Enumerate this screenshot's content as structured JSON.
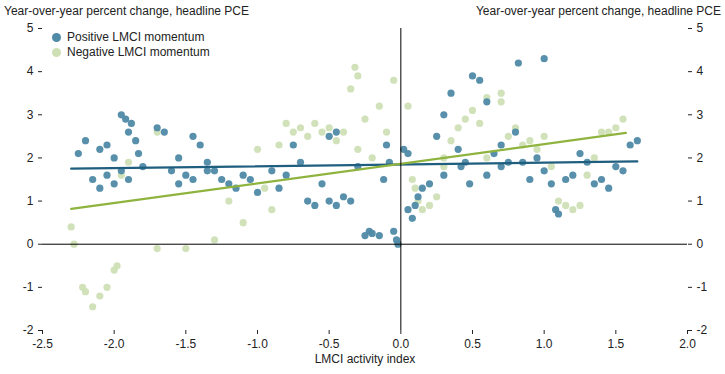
{
  "chart_data": {
    "type": "scatter",
    "title_left": "Year-over-year percent change, headline PCE",
    "title_right": "Year-over-year percent change, headline PCE",
    "x_label": "LMCI activity index",
    "xlim": [
      -2.5,
      2.0
    ],
    "xticks": [
      -2.5,
      {
        "value": -2,
        "label": "-2.0"
      },
      -1.5,
      {
        "value": -1,
        "label": "-1.0"
      },
      -0.5,
      {
        "value": 0,
        "label": "0.0"
      },
      0.5,
      {
        "value": 1,
        "label": "1.0"
      },
      1.5,
      {
        "value": 2,
        "label": "2.0"
      }
    ],
    "ylim": [
      -2,
      5
    ],
    "yticks": [
      -2,
      -1,
      0,
      1,
      2,
      3,
      4,
      5
    ],
    "grid": false,
    "legend": "top-left",
    "marker": "circle",
    "rules": {
      "x": [
        0
      ],
      "y": [
        0
      ]
    },
    "series": [
      {
        "name": "Positive LMCI momentum",
        "color": "#4f8aa6",
        "type": "scatter",
        "x": [
          -2.25,
          -2.2,
          -2.15,
          -2.1,
          -2.05,
          -2.0,
          -1.95,
          -1.92,
          -1.9,
          -1.88,
          -1.85,
          -1.83,
          -1.8,
          -1.95,
          -2.0,
          -2.05,
          -2.1,
          -1.9,
          -1.7,
          -1.65,
          -1.6,
          -1.55,
          -1.5,
          -1.45,
          -1.4,
          -1.35,
          -1.3,
          -1.25,
          -1.2,
          -1.15,
          -1.1,
          -1.05,
          -1.0,
          -1.55,
          -1.45,
          -1.35,
          -0.9,
          -0.85,
          -0.8,
          -0.75,
          -0.7,
          -0.65,
          -0.6,
          -0.55,
          -0.5,
          -0.45,
          -0.4,
          -0.35,
          -0.3,
          -0.5,
          -0.45,
          -0.25,
          -0.22,
          -0.2,
          -0.15,
          -0.1,
          -0.08,
          -0.05,
          -0.03,
          -0.02,
          -0.12,
          0.02,
          0.05,
          0.05,
          0.08,
          0.1,
          0.12,
          0.15,
          0.2,
          0.25,
          0.3,
          0.35,
          0.3,
          0.4,
          0.42,
          0.45,
          0.48,
          0.5,
          0.55,
          0.6,
          0.65,
          0.7,
          0.75,
          0.8,
          0.82,
          0.85,
          0.9,
          0.95,
          1.0,
          1.0,
          0.6,
          0.7,
          1.05,
          1.08,
          1.1,
          1.15,
          1.2,
          1.25,
          1.3,
          1.35,
          1.4,
          1.45,
          1.5,
          1.55,
          1.6,
          1.65
        ],
        "values": [
          2.1,
          2.4,
          1.5,
          1.3,
          1.6,
          1.4,
          3.0,
          2.9,
          2.6,
          2.8,
          2.4,
          2.1,
          1.8,
          1.7,
          2.0,
          2.3,
          2.2,
          1.5,
          2.7,
          2.6,
          1.7,
          2.0,
          1.6,
          2.5,
          2.3,
          1.9,
          1.7,
          1.5,
          1.4,
          1.3,
          1.6,
          1.5,
          1.2,
          1.4,
          1.5,
          1.7,
          1.7,
          1.3,
          1.6,
          2.3,
          1.9,
          1.0,
          0.9,
          1.4,
          2.5,
          2.6,
          1.1,
          1.0,
          1.8,
          1.0,
          0.9,
          0.2,
          0.3,
          0.25,
          0.2,
          2.3,
          1.9,
          0.3,
          0.1,
          0.0,
          1.5,
          2.2,
          2.1,
          0.8,
          0.6,
          0.9,
          1.1,
          1.3,
          1.4,
          2.5,
          3.0,
          3.5,
          1.6,
          2.2,
          1.8,
          1.9,
          1.4,
          3.9,
          3.8,
          1.6,
          2.1,
          2.3,
          1.9,
          2.6,
          4.2,
          1.9,
          1.5,
          2.0,
          4.3,
          1.7,
          3.3,
          1.8,
          1.4,
          0.8,
          0.7,
          1.5,
          1.6,
          2.1,
          1.9,
          1.4,
          1.5,
          1.3,
          1.8,
          1.7,
          2.3,
          2.4
        ],
        "trend": {
          "color": "#1f5e7e",
          "line_style": "solid",
          "x": [
            -2.3,
            1.65
          ],
          "values": [
            1.75,
            1.92
          ]
        }
      },
      {
        "name": "Negative LMCI momentum",
        "color": "#cfe0b6",
        "type": "scatter",
        "x": [
          -2.3,
          -2.28,
          -2.22,
          -2.2,
          -2.15,
          -2.1,
          -2.05,
          -2.0,
          -1.98,
          -1.95,
          -1.9,
          -1.7,
          -1.5,
          -1.7,
          -1.3,
          -1.2,
          -1.1,
          -1.0,
          -0.95,
          -0.9,
          -0.85,
          -0.8,
          -0.75,
          -0.7,
          -0.65,
          -0.6,
          -0.55,
          -0.5,
          -0.45,
          -0.4,
          -0.35,
          -0.32,
          -0.3,
          -0.25,
          -0.2,
          -0.15,
          -0.1,
          -0.05,
          -0.3,
          0.05,
          0.08,
          0.1,
          0.12,
          0.15,
          0.2,
          0.25,
          0.3,
          0.35,
          0.4,
          0.45,
          0.5,
          0.55,
          0.6,
          0.7,
          0.7,
          0.75,
          0.8,
          0.85,
          0.9,
          0.95,
          1.0,
          1.05,
          1.1,
          1.15,
          1.2,
          1.25,
          1.3,
          1.35,
          1.4,
          1.45,
          1.5,
          1.55,
          0.3,
          0.6
        ],
        "values": [
          0.4,
          0.0,
          -1.0,
          -1.1,
          -1.45,
          -1.2,
          -1.0,
          -0.6,
          -0.5,
          1.6,
          1.9,
          -0.1,
          -0.1,
          2.6,
          0.1,
          1.0,
          0.5,
          2.2,
          1.3,
          0.8,
          2.3,
          2.8,
          2.6,
          2.7,
          2.5,
          2.8,
          2.6,
          2.7,
          2.4,
          2.6,
          3.6,
          4.1,
          3.9,
          2.9,
          2.0,
          3.2,
          2.6,
          3.8,
          2.2,
          3.2,
          1.5,
          1.3,
          1.0,
          0.8,
          0.9,
          1.1,
          2.0,
          2.4,
          2.7,
          2.9,
          3.1,
          2.8,
          3.4,
          3.3,
          3.5,
          2.5,
          2.7,
          2.3,
          2.4,
          2.2,
          2.5,
          1.8,
          1.0,
          0.9,
          0.8,
          0.9,
          1.6,
          2.0,
          2.6,
          2.6,
          2.7,
          2.9,
          1.8,
          2.0
        ],
        "trend": {
          "color": "#8fb33f",
          "line_style": "solid",
          "x": [
            -2.3,
            1.57
          ],
          "values": [
            0.82,
            2.58
          ]
        }
      }
    ]
  }
}
